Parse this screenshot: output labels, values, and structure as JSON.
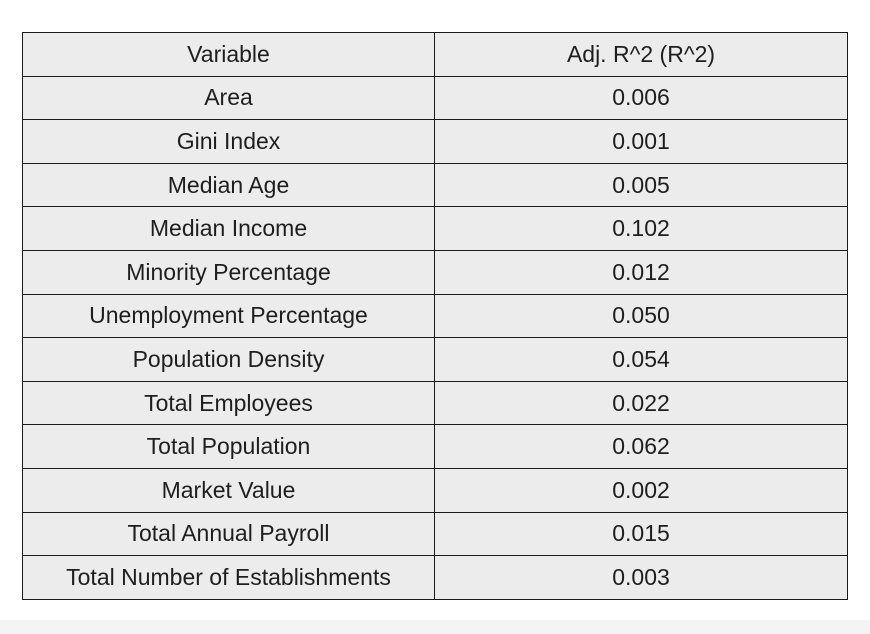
{
  "table": {
    "headers": {
      "variable": "Variable",
      "value": "Adj. R^2 (R^2)"
    },
    "rows": [
      {
        "variable": "Area",
        "value": "0.006"
      },
      {
        "variable": "Gini Index",
        "value": "0.001"
      },
      {
        "variable": "Median Age",
        "value": "0.005"
      },
      {
        "variable": "Median Income",
        "value": "0.102"
      },
      {
        "variable": "Minority Percentage",
        "value": "0.012"
      },
      {
        "variable": "Unemployment Percentage",
        "value": "0.050"
      },
      {
        "variable": "Population Density",
        "value": "0.054"
      },
      {
        "variable": "Total Employees",
        "value": "0.022"
      },
      {
        "variable": "Total Population",
        "value": "0.062"
      },
      {
        "variable": "Market Value",
        "value": "0.002"
      },
      {
        "variable": "Total Annual Payroll",
        "value": "0.015"
      },
      {
        "variable": "Total Number of Establishments",
        "value": "0.003"
      }
    ]
  }
}
